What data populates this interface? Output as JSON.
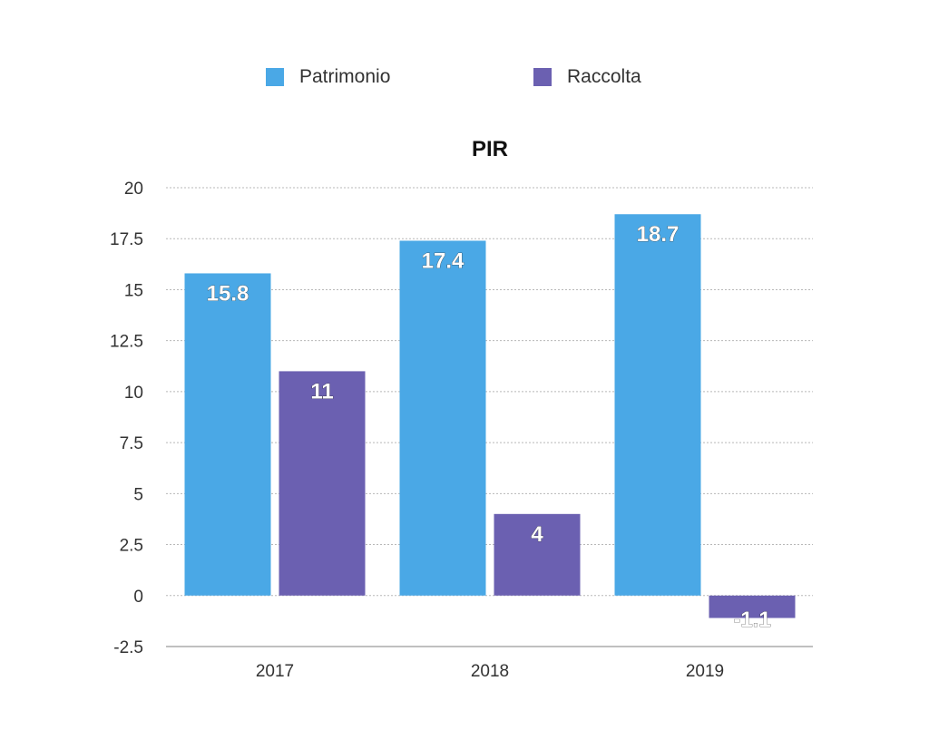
{
  "chart_data": {
    "type": "bar",
    "title": "PIR",
    "categories": [
      "2017",
      "2018",
      "2019"
    ],
    "series": [
      {
        "name": "Patrimonio",
        "color": "#4aa8e6",
        "values": [
          15.8,
          17.4,
          18.7
        ]
      },
      {
        "name": "Raccolta",
        "color": "#6b60b1",
        "values": [
          11,
          4,
          -1.1
        ]
      }
    ],
    "data_labels": [
      [
        "15.8",
        "17.4",
        "18.7"
      ],
      [
        "11",
        "4",
        "-1.1"
      ]
    ],
    "ylim": [
      -2.5,
      20
    ],
    "yticks": [
      -2.5,
      0,
      2.5,
      5,
      7.5,
      10,
      12.5,
      15,
      17.5,
      20
    ],
    "ytick_labels": [
      "-2.5",
      "0",
      "2.5",
      "5",
      "7.5",
      "10",
      "12.5",
      "15",
      "17.5",
      "20"
    ],
    "xlabel": "",
    "ylabel": "",
    "grid": true,
    "legend_position": "top-center"
  }
}
